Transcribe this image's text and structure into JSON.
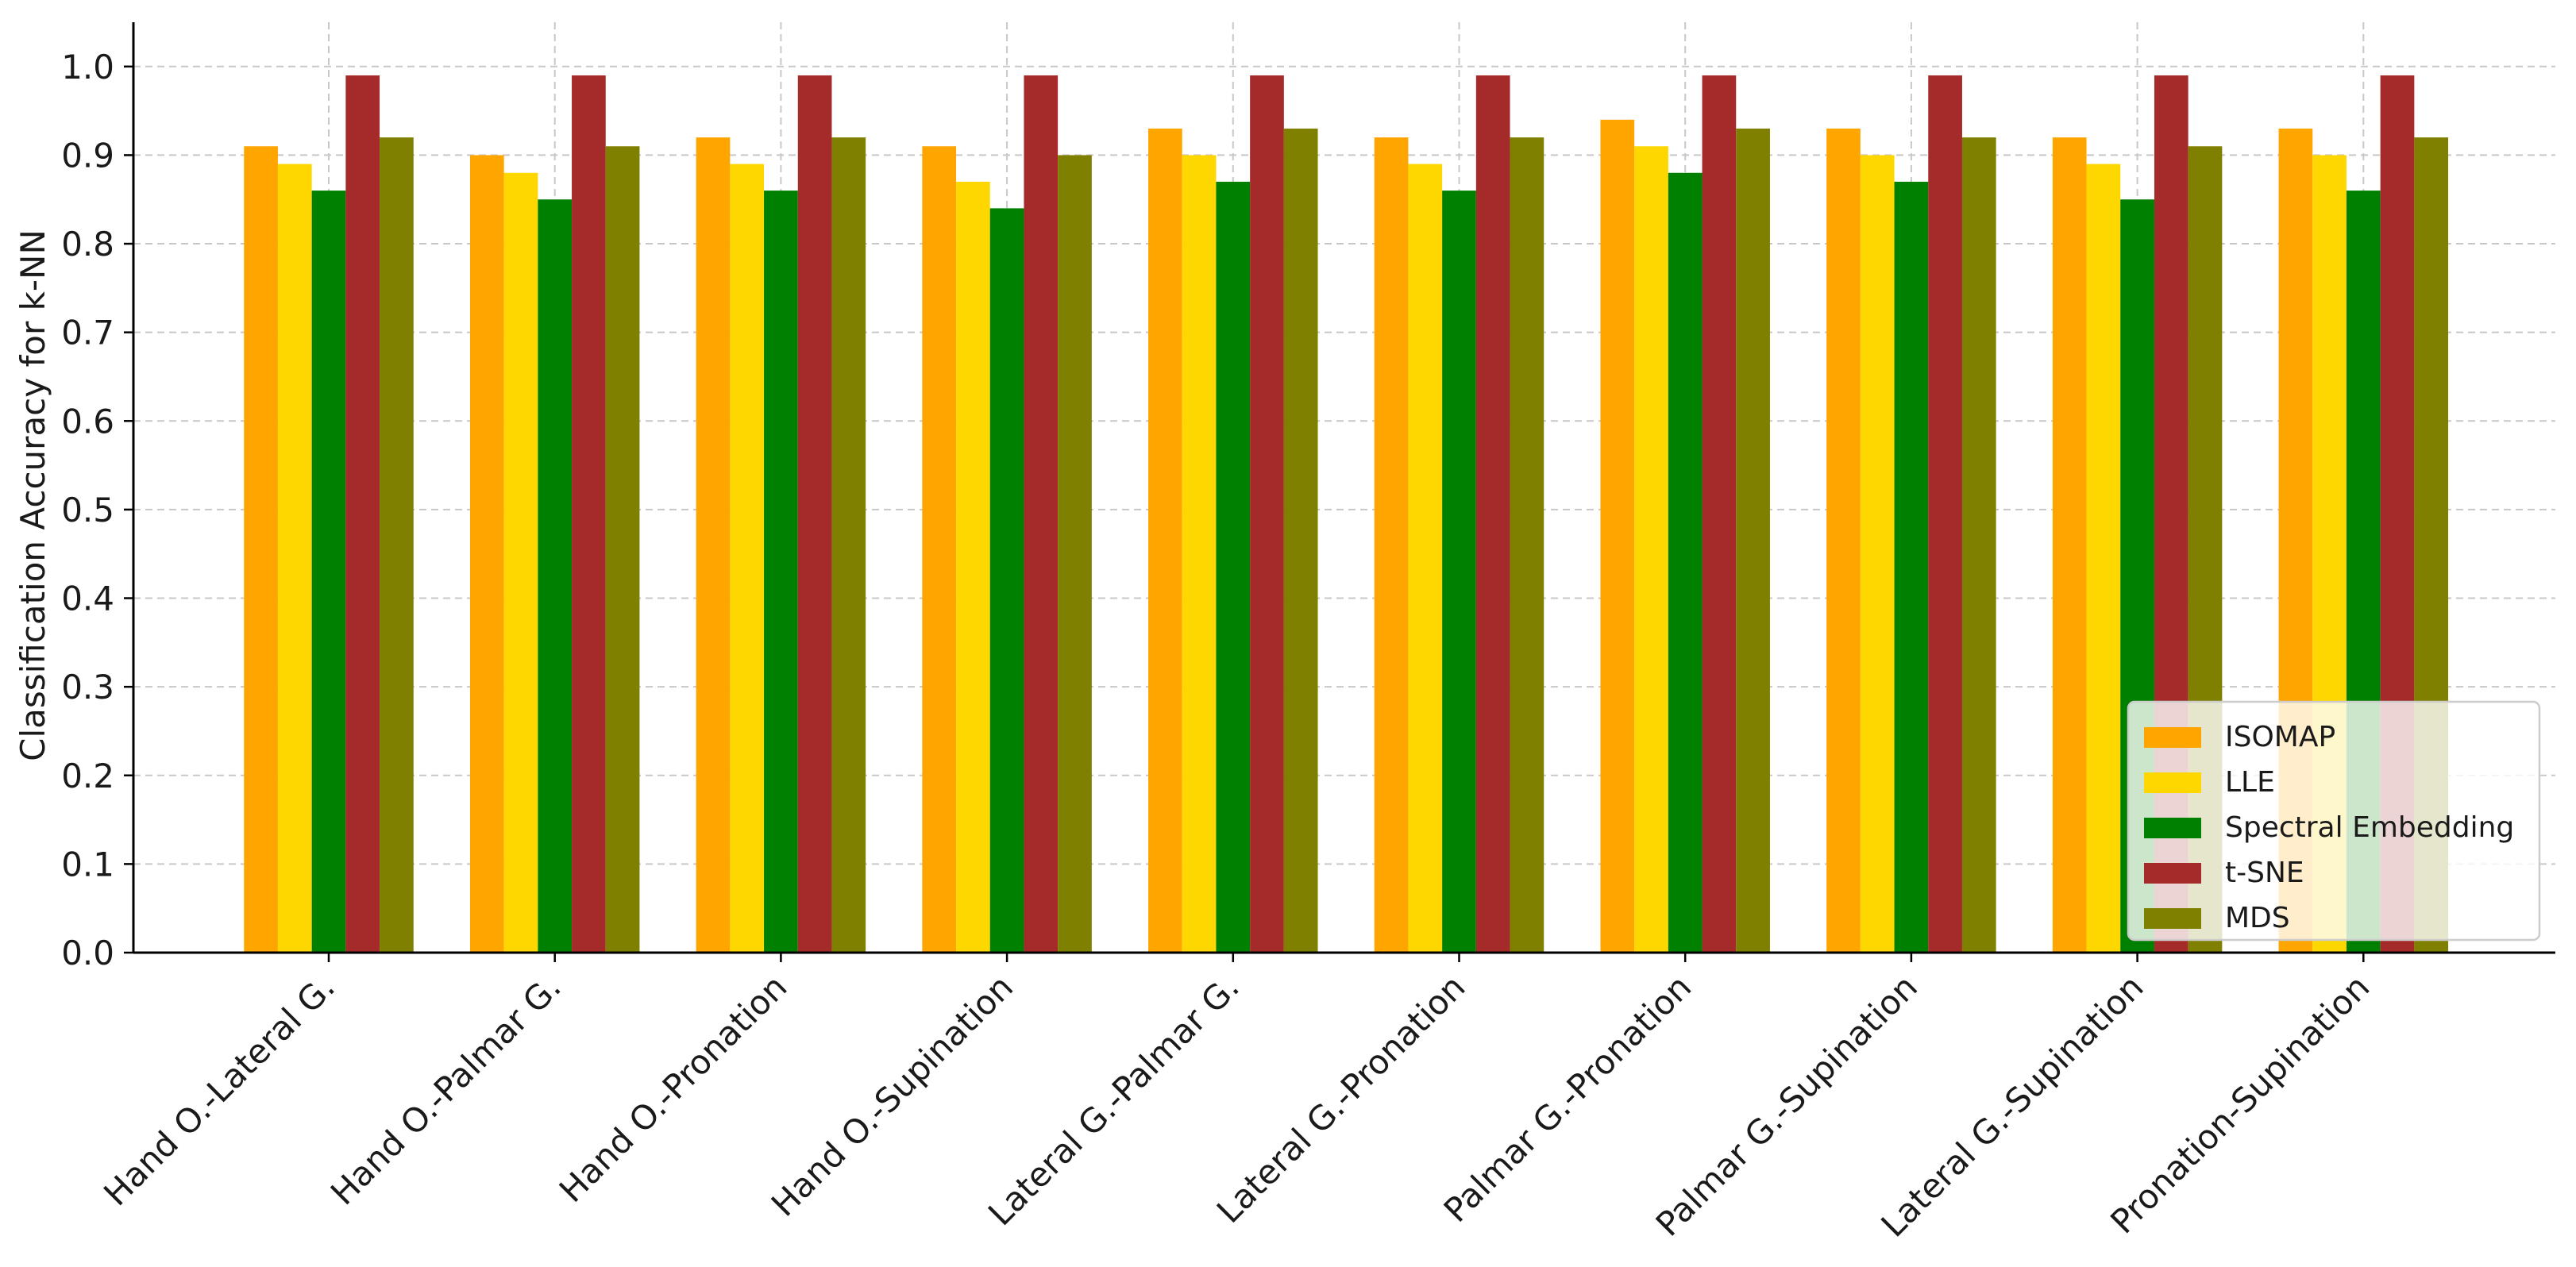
{
  "chart_data": {
    "type": "bar",
    "title": "",
    "xlabel": "",
    "ylabel": "Classification Accuracy for k-NN",
    "ylim": [
      0,
      1.05
    ],
    "yticks": [
      0.0,
      0.1,
      0.2,
      0.3,
      0.4,
      0.5,
      0.6,
      0.7,
      0.8,
      0.9,
      1.0
    ],
    "grid": true,
    "legend_position": "lower-right",
    "categories": [
      "Hand O.-Lateral G.",
      "Hand O.-Palmar G.",
      "Hand O.-Pronation",
      "Hand O.-Supination",
      "Lateral G.-Palmar G.",
      "Lateral G.-Pronation",
      "Palmar G.-Pronation",
      "Palmar G.-Supination",
      "Lateral G.-Supination",
      "Pronation-Supination"
    ],
    "series": [
      {
        "name": "ISOMAP",
        "color": "#FFA500",
        "values": [
          0.91,
          0.9,
          0.92,
          0.91,
          0.93,
          0.92,
          0.94,
          0.93,
          0.92,
          0.93
        ]
      },
      {
        "name": "LLE",
        "color": "#FFD700",
        "values": [
          0.89,
          0.88,
          0.89,
          0.87,
          0.9,
          0.89,
          0.91,
          0.9,
          0.89,
          0.9
        ]
      },
      {
        "name": "Spectral Embedding",
        "color": "#008000",
        "values": [
          0.86,
          0.85,
          0.86,
          0.84,
          0.87,
          0.86,
          0.88,
          0.87,
          0.85,
          0.86
        ]
      },
      {
        "name": "t-SNE",
        "color": "#A52A2A",
        "values": [
          0.99,
          0.99,
          0.99,
          0.99,
          0.99,
          0.99,
          0.99,
          0.99,
          0.99,
          0.99
        ]
      },
      {
        "name": "MDS",
        "color": "#808000",
        "values": [
          0.92,
          0.91,
          0.92,
          0.9,
          0.93,
          0.92,
          0.93,
          0.92,
          0.91,
          0.92
        ]
      }
    ]
  }
}
